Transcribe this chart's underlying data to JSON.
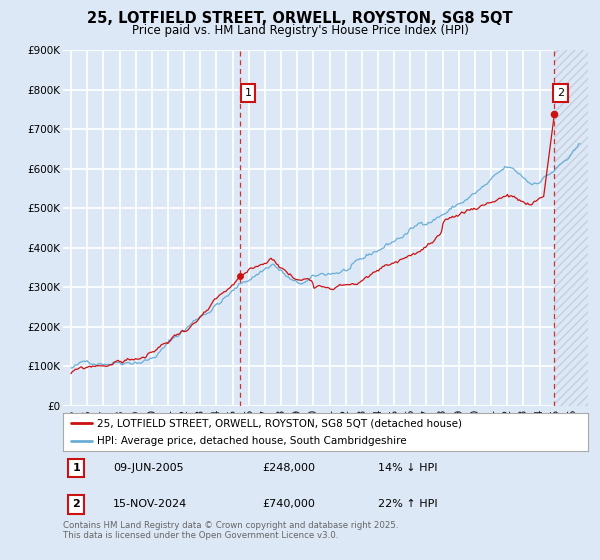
{
  "title": "25, LOTFIELD STREET, ORWELL, ROYSTON, SG8 5QT",
  "subtitle": "Price paid vs. HM Land Registry's House Price Index (HPI)",
  "bg_color": "#dce8f5",
  "plot_bg_color": "#dce8f5",
  "grid_color": "#ffffff",
  "hpi_color": "#6aaed6",
  "price_color": "#cc1111",
  "ylim_min": 0,
  "ylim_max": 900000,
  "yticks": [
    0,
    100000,
    200000,
    300000,
    400000,
    500000,
    600000,
    700000,
    800000,
    900000
  ],
  "ytick_labels": [
    "£0",
    "£100K",
    "£200K",
    "£300K",
    "£400K",
    "£500K",
    "£600K",
    "£700K",
    "£800K",
    "£900K"
  ],
  "xlim_start": 1994.5,
  "xlim_end": 2027.0,
  "xticks": [
    1995,
    1996,
    1997,
    1998,
    1999,
    2000,
    2001,
    2002,
    2003,
    2004,
    2005,
    2006,
    2007,
    2008,
    2009,
    2010,
    2011,
    2012,
    2013,
    2014,
    2015,
    2016,
    2017,
    2018,
    2019,
    2020,
    2021,
    2022,
    2023,
    2024,
    2025,
    2026
  ],
  "sale1_year": 2005.44,
  "sale1_price": 248000,
  "sale1_label": "1",
  "sale1_date": "09-JUN-2005",
  "sale1_amount": "£248,000",
  "sale1_pct": "14% ↓ HPI",
  "sale2_year": 2024.88,
  "sale2_price": 740000,
  "sale2_label": "2",
  "sale2_date": "15-NOV-2024",
  "sale2_amount": "£740,000",
  "sale2_pct": "22% ↑ HPI",
  "legend_line1": "25, LOTFIELD STREET, ORWELL, ROYSTON, SG8 5QT (detached house)",
  "legend_line2": "HPI: Average price, detached house, South Cambridgeshire",
  "footer1": "Contains HM Land Registry data © Crown copyright and database right 2025.",
  "footer2": "This data is licensed under the Open Government Licence v3.0."
}
